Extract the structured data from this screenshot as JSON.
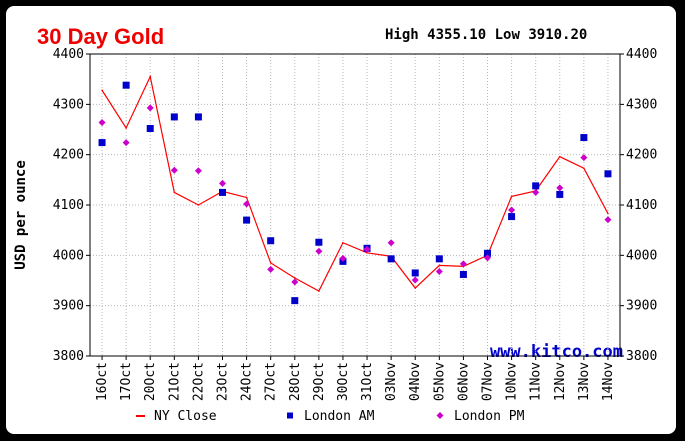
{
  "chart_data": {
    "type": "line",
    "title": "30 Day Gold",
    "high_label": "High",
    "high_value": "4355.10",
    "low_label": "Low",
    "low_value": "3910.20",
    "ylabel": "USD per ounce",
    "ylim": [
      3800,
      4400
    ],
    "yticks": [
      "3800",
      "3900",
      "4000",
      "4100",
      "4200",
      "4300",
      "4400"
    ],
    "categories": [
      "16Oct",
      "17Oct",
      "20Oct",
      "21Oct",
      "22Oct",
      "23Oct",
      "24Oct",
      "27Oct",
      "28Oct",
      "29Oct",
      "30Oct",
      "31Oct",
      "03Nov",
      "04Nov",
      "05Nov",
      "06Nov",
      "07Nov",
      "10Nov",
      "11Nov",
      "12Nov",
      "13Nov",
      "14Nov"
    ],
    "grid": true,
    "legend_position": "bottom",
    "watermark": "www.kitco.com",
    "series": [
      {
        "name": "NY Close",
        "kind": "line",
        "color": "#ff0000",
        "values": [
          4328,
          4253,
          4355,
          4125,
          4100,
          4127,
          4115,
          3985,
          3955,
          3929,
          4025,
          4005,
          3998,
          3935,
          3980,
          3978,
          4000,
          4117,
          4128,
          4196,
          4173,
          4083
        ]
      },
      {
        "name": "London AM",
        "kind": "square",
        "color": "#0000cc",
        "values": [
          4224,
          4338,
          4252,
          4275,
          4275,
          4125,
          4070,
          4029,
          3910,
          4026,
          3988,
          4014,
          3993,
          3965,
          3993,
          3962,
          4004,
          4077,
          4138,
          4121,
          4234,
          4162
        ]
      },
      {
        "name": "London PM",
        "kind": "diamond",
        "color": "#cc00cc",
        "values": [
          4264,
          4224,
          4293,
          4169,
          4168,
          4143,
          4102,
          3972,
          3947,
          4008,
          3994,
          4012,
          4025,
          3951,
          3968,
          3983,
          3995,
          4090,
          4125,
          4134,
          4194,
          4071
        ]
      }
    ]
  }
}
